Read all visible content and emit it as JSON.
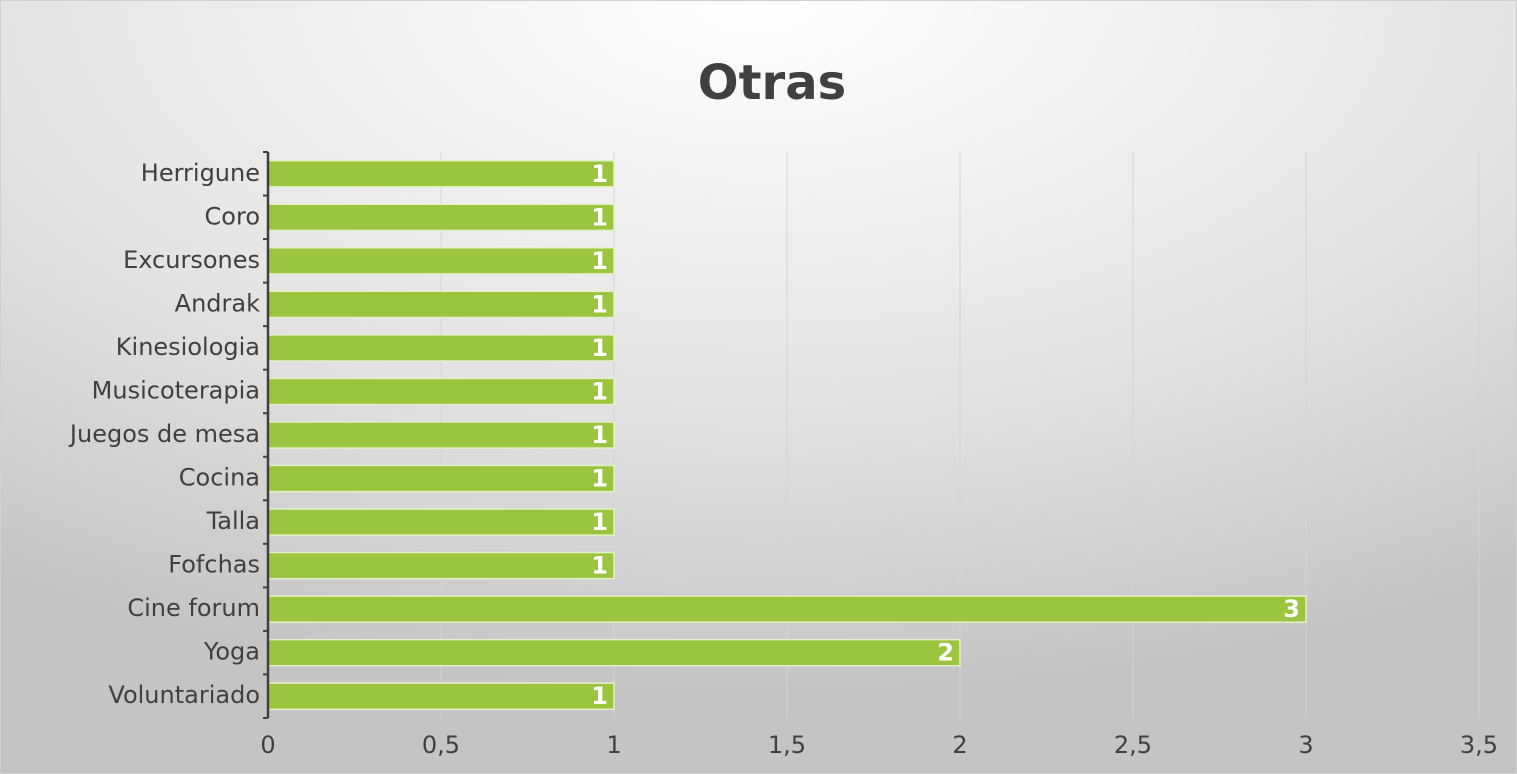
{
  "chart_data": {
    "type": "barh",
    "title": "Otras",
    "categories": [
      "Herrigune",
      "Coro",
      "Excursones",
      "Andrak",
      "Kinesiologia",
      "Musicoterapia",
      "Juegos de mesa",
      "Cocina",
      "Talla",
      "Fofchas",
      "Cine forum",
      "Yoga",
      "Voluntariado"
    ],
    "values": [
      1,
      1,
      1,
      1,
      1,
      1,
      1,
      1,
      1,
      1,
      3,
      2,
      1
    ],
    "color": "#9bc53f",
    "xlim": [
      0,
      3.5
    ],
    "xticks": [
      0,
      {
        "value": 0.5,
        "label": "0,5"
      },
      1,
      {
        "value": 1.5,
        "label": "1,5"
      },
      2,
      {
        "value": 2.5,
        "label": "2,5"
      },
      3,
      {
        "value": 3.5,
        "label": "3,5"
      }
    ],
    "grid": true
  }
}
